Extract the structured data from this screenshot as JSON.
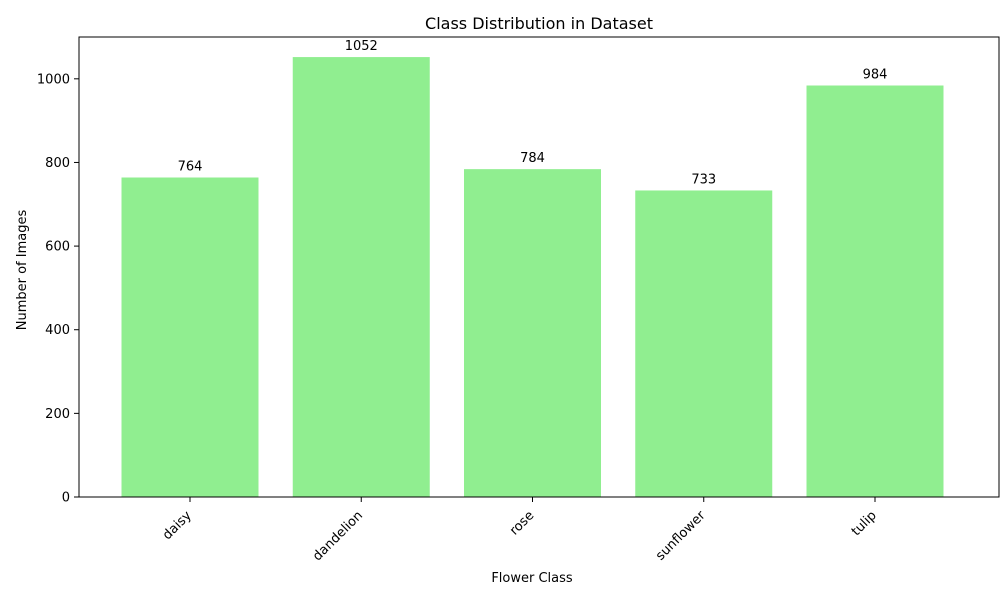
{
  "chart_data": {
    "type": "bar",
    "title": "Class Distribution in Dataset",
    "xlabel": "Flower Class",
    "ylabel": "Number of Images",
    "categories": [
      "daisy",
      "dandelion",
      "rose",
      "sunflower",
      "tulip"
    ],
    "values": [
      764,
      1052,
      784,
      733,
      984
    ],
    "data_labels": [
      "764",
      "1052",
      "784",
      "733",
      "984"
    ],
    "ylim": [
      0,
      1100
    ],
    "yticks": [
      0,
      200,
      400,
      600,
      800,
      1000
    ],
    "ytick_labels": [
      "0",
      "200",
      "400",
      "600",
      "800",
      "1000"
    ],
    "bar_color": "#90ee90",
    "grid": false,
    "legend": "none"
  }
}
